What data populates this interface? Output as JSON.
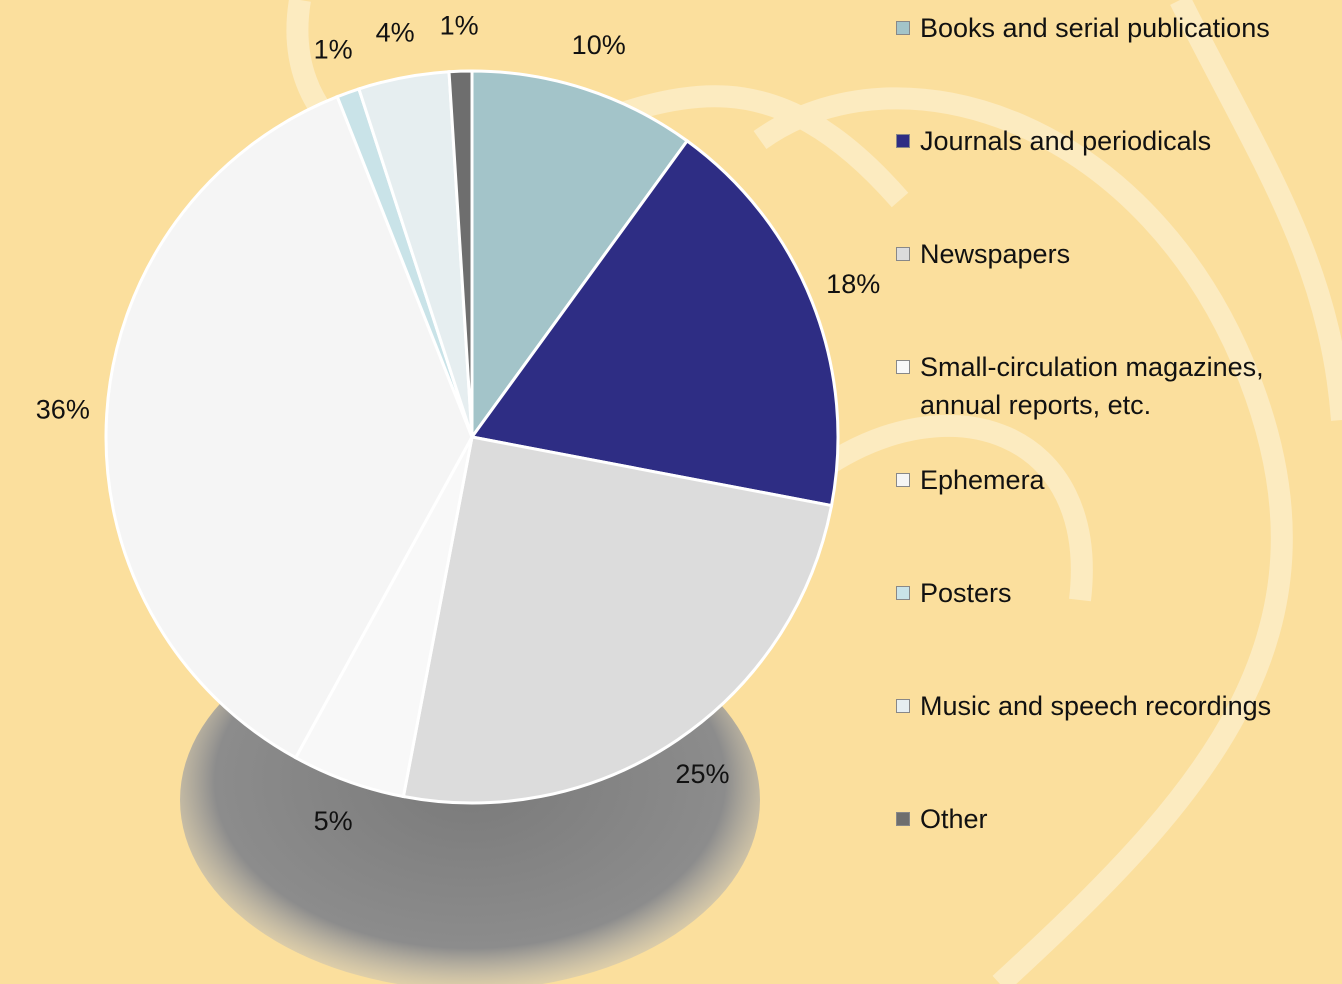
{
  "chart_data": {
    "type": "pie",
    "categories": [
      "Books and serial publications",
      "Journals and periodicals",
      "Newspapers",
      "Small-circulation magazines, annual reports, etc.",
      "Ephemera",
      "Posters",
      "Music and speech recordings",
      "Other"
    ],
    "values": [
      10,
      18,
      25,
      5,
      36,
      1,
      4,
      1
    ],
    "value_labels": [
      "10%",
      "18%",
      "25%",
      "5%",
      "36%",
      "1%",
      "4%",
      "1%"
    ],
    "colors": [
      "#a3c4c9",
      "#2e2d84",
      "#dcdcdc",
      "#f8f8f8",
      "#f5f5f5",
      "#c9e3e8",
      "#e6eef0",
      "#6e6e6e"
    ],
    "legend": "right"
  }
}
